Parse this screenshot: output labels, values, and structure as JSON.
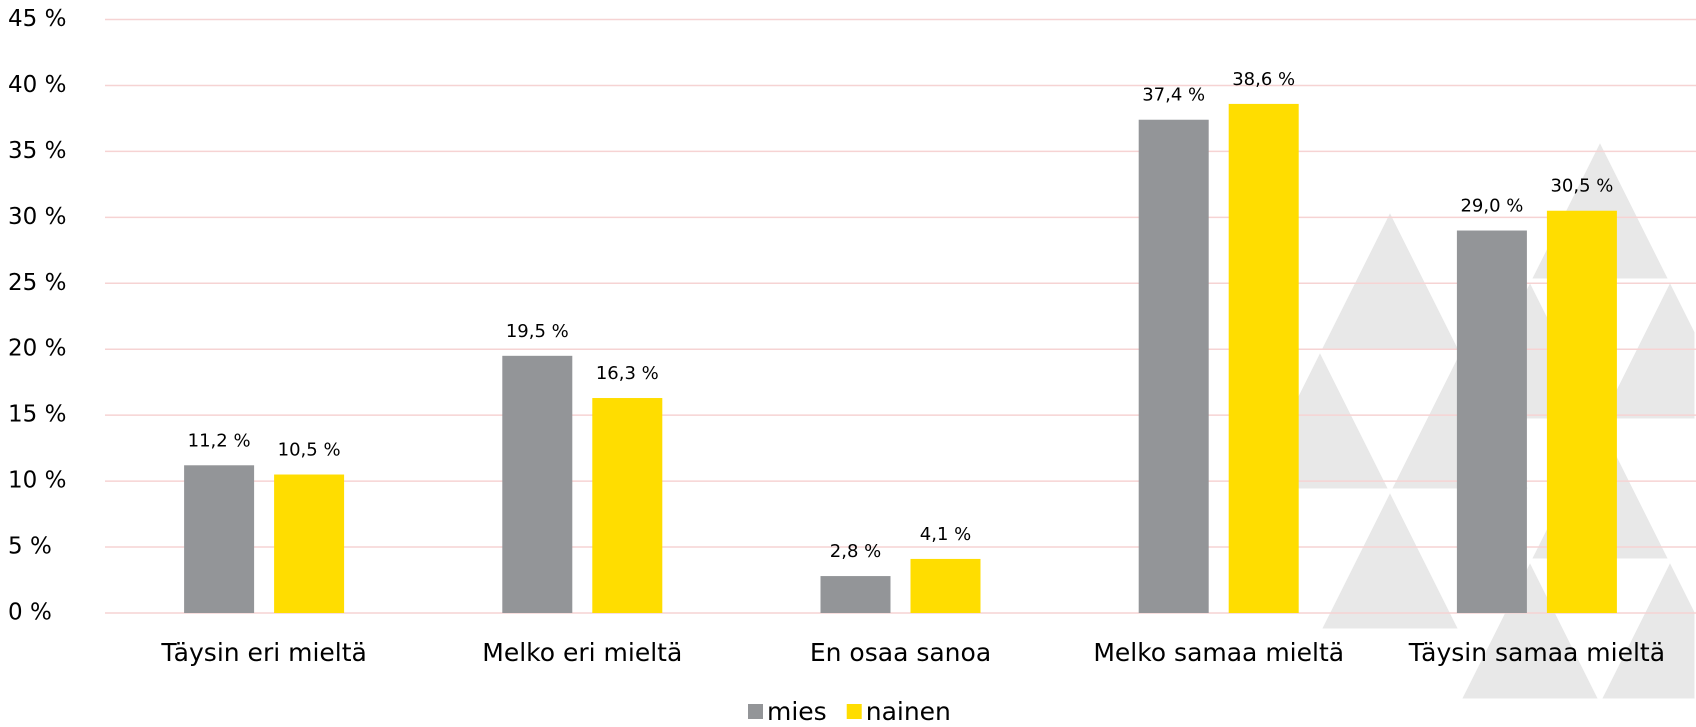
{
  "chart_data": {
    "type": "bar",
    "categories": [
      "Täysin eri mieltä",
      "Melko eri mieltä",
      "En osaa sanoa",
      "Melko samaa mieltä",
      "Täysin samaa mieltä"
    ],
    "series": [
      {
        "name": "mies",
        "color": "#939598",
        "values": [
          11.2,
          19.5,
          2.8,
          37.4,
          29.0
        ],
        "value_labels": [
          "11,2 %",
          "19,5 %",
          "2,8 %",
          "37,4 %",
          "29,0 %"
        ]
      },
      {
        "name": "nainen",
        "color": "#ffdd00",
        "values": [
          10.5,
          16.3,
          4.1,
          38.6,
          30.5
        ],
        "value_labels": [
          "10,5 %",
          "16,3 %",
          "4,1 %",
          "38,6 %",
          "30,5 %"
        ]
      }
    ],
    "ylim": [
      0,
      45
    ],
    "yticks": [
      {
        "value": 0,
        "label": "0 %"
      },
      {
        "value": 5,
        "label": "5 %"
      },
      {
        "value": 10,
        "label": "10 %"
      },
      {
        "value": 15,
        "label": "15 %"
      },
      {
        "value": 20,
        "label": "20 %"
      },
      {
        "value": 25,
        "label": "25 %"
      },
      {
        "value": 30,
        "label": "30 %"
      },
      {
        "value": 35,
        "label": "35 %"
      },
      {
        "value": 40,
        "label": "40 %"
      },
      {
        "value": 45,
        "label": "45 %"
      }
    ],
    "grid": true,
    "legend": "bottom"
  }
}
